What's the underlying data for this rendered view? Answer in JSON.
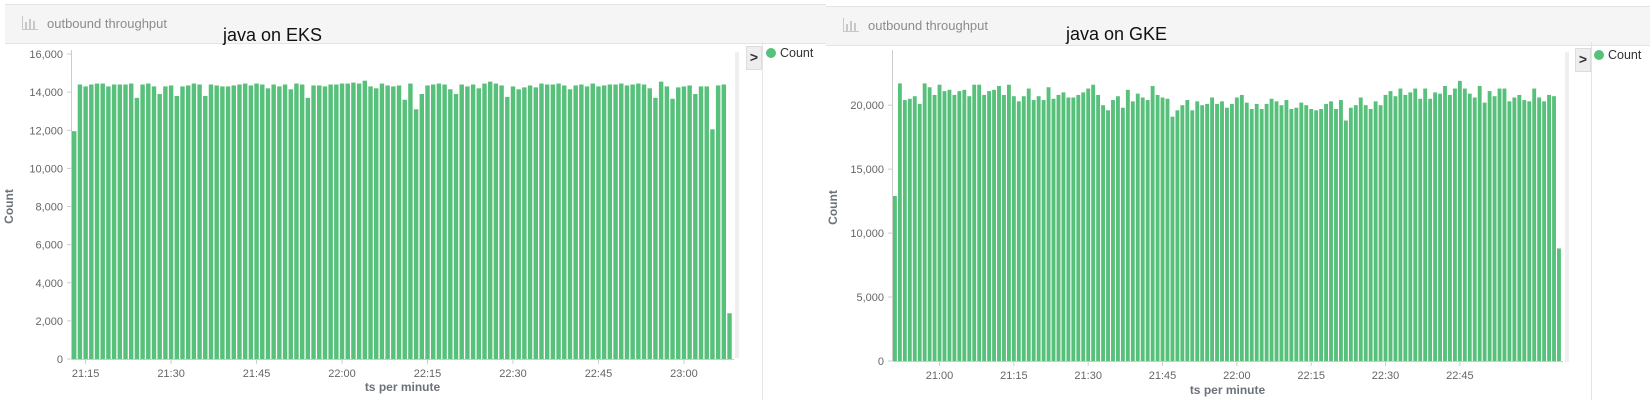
{
  "panels": [
    {
      "id": "eks",
      "title": "outbound throughput",
      "annotation": "java on EKS",
      "legend": {
        "label": "Count",
        "toggle": ">"
      },
      "chart_data": {
        "type": "bar",
        "title": "java on EKS",
        "xlabel": "ts per minute",
        "ylabel": "Count",
        "ylim": [
          0,
          16000
        ],
        "yticks": [
          0,
          2000,
          4000,
          6000,
          8000,
          10000,
          12000,
          14000,
          16000
        ],
        "ytick_labels": [
          "0",
          "2,000",
          "4,000",
          "6,000",
          "8,000",
          "10,000",
          "12,000",
          "14,000",
          "16,000"
        ],
        "xtick_labels": [
          "21:15",
          "21:30",
          "21:45",
          "22:00",
          "22:15",
          "22:30",
          "22:45",
          "23:00"
        ],
        "xtick_bar_index": [
          2,
          17,
          32,
          47,
          62,
          77,
          92,
          107
        ],
        "grid": false,
        "legend_position": "top-right",
        "color": "#57c17b",
        "series": [
          {
            "name": "Count",
            "values": [
              11950,
              14400,
              14300,
              14400,
              14450,
              14450,
              14300,
              14400,
              14400,
              14400,
              14450,
              13700,
              14400,
              14450,
              14300,
              13900,
              14300,
              14350,
              13800,
              14300,
              14350,
              14450,
              14400,
              13800,
              14400,
              14350,
              14300,
              14300,
              14350,
              14400,
              14450,
              14350,
              14450,
              14400,
              14200,
              14400,
              14300,
              14400,
              14150,
              14450,
              14400,
              13700,
              14350,
              14350,
              14300,
              14400,
              14400,
              14450,
              14450,
              14500,
              14450,
              14600,
              14300,
              14200,
              14450,
              14350,
              14300,
              14350,
              13600,
              14450,
              13100,
              13900,
              14350,
              14400,
              14450,
              14400,
              14150,
              13900,
              14400,
              14300,
              14400,
              14200,
              14450,
              14550,
              14450,
              14350,
              13750,
              14300,
              14150,
              14250,
              14350,
              14250,
              14450,
              14400,
              14400,
              14450,
              14350,
              14150,
              14350,
              14400,
              14300,
              14450,
              14300,
              14350,
              14400,
              14400,
              14450,
              14350,
              14400,
              14450,
              14400,
              14200,
              13700,
              14550,
              14300,
              13650,
              14250,
              14300,
              14350,
              13900,
              14300,
              14300,
              12050,
              14350,
              14400,
              2400
            ]
          }
        ]
      }
    },
    {
      "id": "gke",
      "title": "outbound throughput",
      "annotation": "java on GKE",
      "legend": {
        "label": "Count",
        "toggle": ">"
      },
      "chart_data": {
        "type": "bar",
        "title": "java on GKE",
        "xlabel": "ts per minute",
        "ylabel": "Count",
        "ylim": [
          0,
          24000
        ],
        "yticks": [
          0,
          5000,
          10000,
          15000,
          20000
        ],
        "ytick_labels": [
          "0",
          "5,000",
          "10,000",
          "15,000",
          "20,000"
        ],
        "xtick_labels": [
          "21:00",
          "21:15",
          "21:30",
          "21:45",
          "22:00",
          "22:15",
          "22:30",
          "22:45"
        ],
        "xtick_bar_index": [
          9,
          24,
          39,
          54,
          69,
          84,
          99,
          114
        ],
        "grid": false,
        "legend_position": "top-right",
        "color": "#57c17b",
        "series": [
          {
            "name": "Count",
            "values": [
              12900,
              21700,
              20400,
              20500,
              20700,
              20100,
              21700,
              21400,
              20800,
              21600,
              21100,
              21200,
              20800,
              21100,
              21200,
              20700,
              21600,
              21600,
              20800,
              21100,
              21200,
              21500,
              20800,
              21600,
              20700,
              20300,
              20700,
              21300,
              20400,
              20700,
              20400,
              21400,
              20500,
              20800,
              21000,
              20600,
              20600,
              20800,
              21000,
              21300,
              21600,
              20800,
              20000,
              19600,
              20400,
              20700,
              19800,
              21200,
              20300,
              20900,
              20600,
              20400,
              21500,
              20800,
              20600,
              20500,
              19100,
              19600,
              20000,
              20400,
              19600,
              20300,
              20000,
              20100,
              20600,
              20100,
              20300,
              19800,
              20100,
              20600,
              20800,
              20200,
              19700,
              20100,
              19700,
              20100,
              20500,
              20300,
              20000,
              20400,
              19700,
              19800,
              20200,
              20000,
              19700,
              19600,
              19700,
              20100,
              20300,
              19700,
              20400,
              18800,
              19800,
              20000,
              20600,
              20000,
              19700,
              20300,
              20000,
              20800,
              21100,
              20700,
              21300,
              20800,
              21000,
              21300,
              20500,
              21300,
              20500,
              21000,
              20900,
              21500,
              20800,
              21300,
              21900,
              21300,
              20900,
              20600,
              21500,
              20200,
              21100,
              20700,
              21300,
              21300,
              20300,
              20600,
              20800,
              20400,
              20300,
              21300,
              20600,
              20300,
              20800,
              20700,
              8800
            ]
          }
        ]
      }
    }
  ]
}
